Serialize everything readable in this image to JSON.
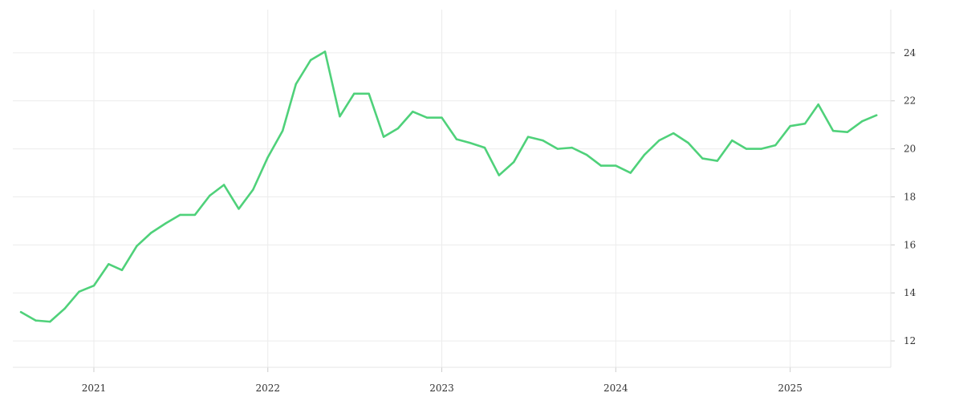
{
  "chart_data": {
    "type": "line",
    "title": "",
    "xlabel": "",
    "ylabel": "",
    "x_tick_labels": [
      "2021",
      "2022",
      "2023",
      "2024",
      "2025"
    ],
    "y_ticks": [
      12,
      14,
      16,
      18,
      20,
      22,
      24
    ],
    "ylim": [
      10.9,
      25.8
    ],
    "xlim": [
      "2020-07-15",
      "2025-07-31"
    ],
    "grid": true,
    "y_axis_position": "right",
    "legend": "none",
    "line_color": "#4fd17a",
    "series": [
      {
        "x": [
          "2020-08",
          "2020-09",
          "2020-10",
          "2020-11",
          "2020-12",
          "2021-01",
          "2021-02",
          "2021-03",
          "2021-04",
          "2021-05",
          "2021-06",
          "2021-07",
          "2021-08",
          "2021-09",
          "2021-10",
          "2021-11",
          "2021-12",
          "2022-01",
          "2022-02",
          "2022-03",
          "2022-04",
          "2022-05",
          "2022-06",
          "2022-07",
          "2022-08",
          "2022-09",
          "2022-10",
          "2022-11",
          "2022-12",
          "2023-01",
          "2023-02",
          "2023-03",
          "2023-04",
          "2023-05",
          "2023-06",
          "2023-07",
          "2023-08",
          "2023-09",
          "2023-10",
          "2023-11",
          "2023-12",
          "2024-01",
          "2024-02",
          "2024-03",
          "2024-04",
          "2024-05",
          "2024-06",
          "2024-07",
          "2024-08",
          "2024-09",
          "2024-10",
          "2024-11",
          "2024-12",
          "2025-01",
          "2025-02",
          "2025-03",
          "2025-04",
          "2025-05",
          "2025-06",
          "2025-07"
        ],
        "y": [
          13.2,
          12.85,
          12.8,
          13.35,
          14.05,
          14.3,
          15.2,
          14.95,
          15.95,
          16.5,
          16.9,
          17.25,
          17.25,
          18.05,
          18.5,
          17.5,
          18.3,
          19.65,
          20.75,
          22.7,
          23.7,
          24.05,
          21.35,
          22.3,
          22.3,
          20.5,
          20.85,
          21.55,
          21.3,
          21.3,
          20.4,
          20.25,
          20.05,
          18.9,
          19.45,
          20.5,
          20.35,
          20.0,
          20.05,
          19.75,
          19.3,
          19.3,
          19.0,
          19.75,
          20.35,
          20.65,
          20.25,
          19.6,
          19.5,
          20.35,
          20.0,
          20.0,
          20.15,
          20.95,
          21.05,
          21.85,
          20.75,
          20.7,
          21.15,
          21.4
        ]
      }
    ]
  }
}
